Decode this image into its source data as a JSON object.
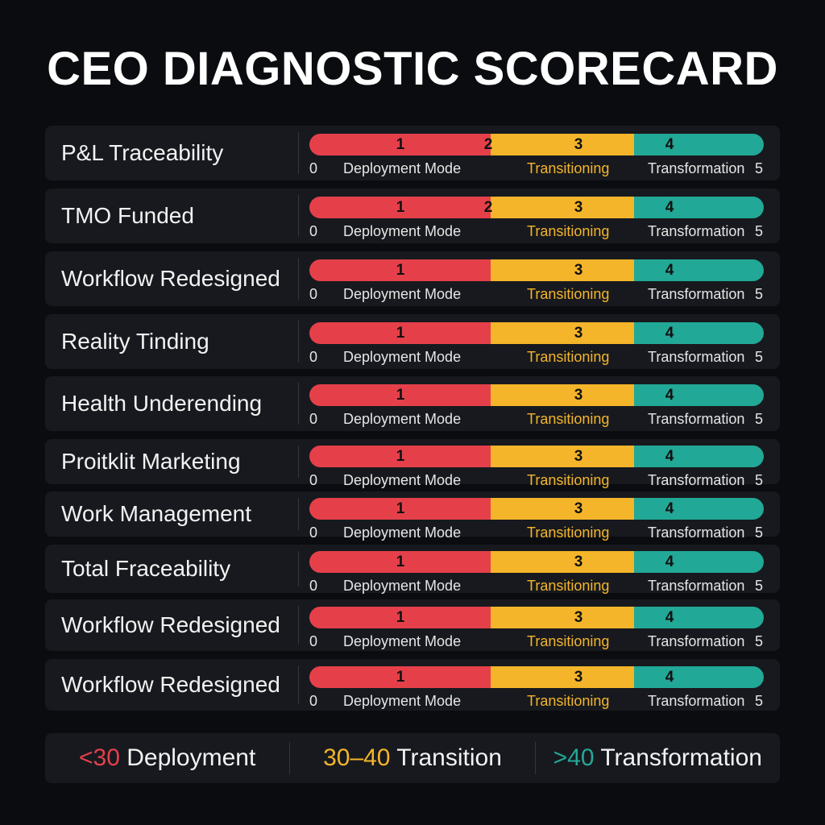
{
  "title": "CEO DIAGNOSTIC SCORECARD",
  "colors": {
    "red": "#e5404a",
    "yellow": "#f4b52a",
    "teal": "#22a896",
    "background": "#0b0c10",
    "panel": "#17191e"
  },
  "scale": {
    "min": "0",
    "max": "5",
    "zones": [
      "Deployment Mode",
      "Transitioning",
      "Transformation"
    ]
  },
  "rows": [
    {
      "label": "P&L Traceability",
      "bar_numbers": [
        "1",
        "2",
        "3",
        "4"
      ]
    },
    {
      "label": "TMO Funded",
      "bar_numbers": [
        "1",
        "2",
        "3",
        "4"
      ]
    },
    {
      "label": "Workflow Redesigned",
      "bar_numbers": [
        "1",
        "3",
        "4"
      ]
    },
    {
      "label": "Reality Tinding",
      "bar_numbers": [
        "1",
        "3",
        "4"
      ]
    },
    {
      "label": "Health Underending",
      "bar_numbers": [
        "1",
        "3",
        "4"
      ]
    },
    {
      "label": "Proitklit Marketing",
      "bar_numbers": [
        "1",
        "3",
        "4"
      ]
    },
    {
      "label": "Work Management",
      "bar_numbers": [
        "1",
        "3",
        "4"
      ]
    },
    {
      "label": "Total Fraceability",
      "bar_numbers": [
        "1",
        "3",
        "4"
      ]
    },
    {
      "label": "Workflow Redesigned",
      "bar_numbers": [
        "1",
        "3",
        "4"
      ]
    },
    {
      "label": "Workflow Redesigned",
      "bar_numbers": [
        "1",
        "3",
        "4"
      ]
    }
  ],
  "legend": [
    {
      "range": "<30",
      "label": "Deployment"
    },
    {
      "range": "30–40",
      "label": "Transition"
    },
    {
      "range": ">40",
      "label": "Transformation"
    }
  ]
}
